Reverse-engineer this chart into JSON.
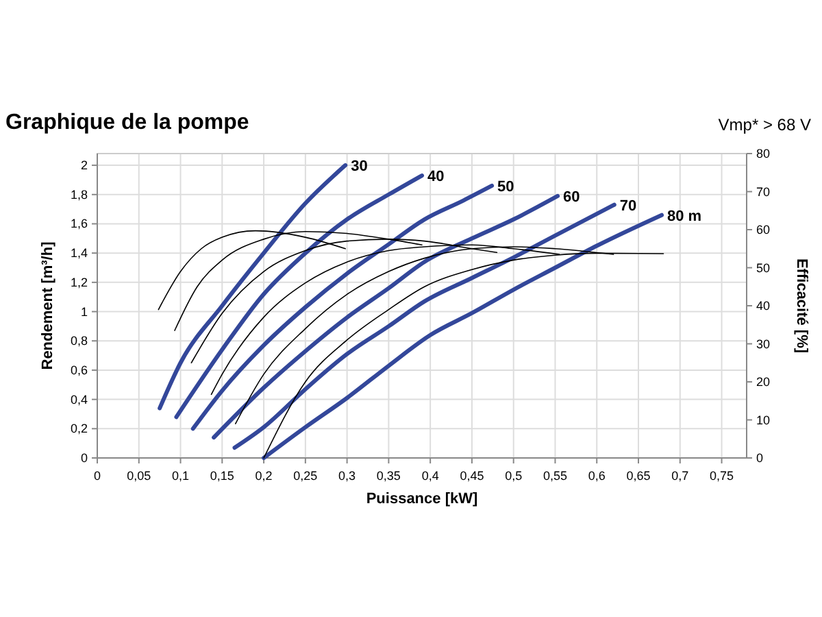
{
  "chart_data": {
    "type": "line",
    "title": "Graphique de la pompe",
    "annotations": [
      "Vmp* > 68 V"
    ],
    "xlabel": "Puissance [kW]",
    "ylabel": "Rendement [m³/h]",
    "y2label": "Efficacité [%]",
    "xlim": [
      0,
      0.78
    ],
    "xticks": [
      0,
      {
        "value": 0.05,
        "label": "0,05"
      },
      {
        "value": 0.1,
        "label": "0,1"
      },
      {
        "value": 0.15,
        "label": "0,15"
      },
      {
        "value": 0.2,
        "label": "0,2"
      },
      {
        "value": 0.25,
        "label": "0,25"
      },
      {
        "value": 0.3,
        "label": "0,3"
      },
      {
        "value": 0.35,
        "label": "0,35"
      },
      {
        "value": 0.4,
        "label": "0,4"
      },
      {
        "value": 0.45,
        "label": "0,45"
      },
      {
        "value": 0.5,
        "label": "0,5"
      },
      {
        "value": 0.55,
        "label": "0,55"
      },
      {
        "value": 0.6,
        "label": "0,6"
      },
      {
        "value": 0.65,
        "label": "0,65"
      },
      {
        "value": 0.7,
        "label": "0,7"
      },
      {
        "value": 0.75,
        "label": "0,75"
      }
    ],
    "ylim": [
      0,
      2.08
    ],
    "yticks": [
      0,
      {
        "value": 0.2,
        "label": "0,2"
      },
      {
        "value": 0.4,
        "label": "0,4"
      },
      {
        "value": 0.6,
        "label": "0,6"
      },
      {
        "value": 0.8,
        "label": "0,8"
      },
      1,
      {
        "value": 1.2,
        "label": "1,2"
      },
      {
        "value": 1.4,
        "label": "1,4"
      },
      {
        "value": 1.6,
        "label": "1,6"
      },
      {
        "value": 1.8,
        "label": "1,8"
      },
      2
    ],
    "y2lim": [
      0,
      80
    ],
    "y2ticks": [
      0,
      10,
      20,
      30,
      40,
      50,
      60,
      70,
      80
    ],
    "grid": true,
    "marker": "none",
    "line_style": "solid",
    "series": [
      {
        "name": "30",
        "color": "#33479a",
        "x": [
          0.075,
          0.1,
          0.15,
          0.2,
          0.25,
          0.298
        ],
        "values": [
          0.34,
          0.65,
          1.04,
          1.4,
          1.74,
          2.0
        ]
      },
      {
        "name": "40",
        "color": "#33479a",
        "x": [
          0.095,
          0.15,
          0.2,
          0.25,
          0.3,
          0.35,
          0.39
        ],
        "values": [
          0.28,
          0.74,
          1.12,
          1.4,
          1.63,
          1.8,
          1.93
        ]
      },
      {
        "name": "50",
        "color": "#33479a",
        "x": [
          0.115,
          0.15,
          0.2,
          0.25,
          0.3,
          0.35,
          0.393,
          0.44,
          0.474
        ],
        "values": [
          0.2,
          0.46,
          0.77,
          1.03,
          1.26,
          1.46,
          1.63,
          1.76,
          1.86
        ]
      },
      {
        "name": "60",
        "color": "#33479a",
        "x": [
          0.14,
          0.2,
          0.25,
          0.3,
          0.35,
          0.393,
          0.45,
          0.5,
          0.553
        ],
        "values": [
          0.14,
          0.48,
          0.73,
          0.96,
          1.16,
          1.34,
          1.5,
          1.63,
          1.79
        ]
      },
      {
        "name": "70",
        "color": "#33479a",
        "x": [
          0.165,
          0.2,
          0.25,
          0.3,
          0.35,
          0.393,
          0.45,
          0.5,
          0.55,
          0.621
        ],
        "values": [
          0.07,
          0.21,
          0.47,
          0.71,
          0.9,
          1.07,
          1.23,
          1.37,
          1.52,
          1.73
        ]
      },
      {
        "name": "80 m",
        "color": "#33479a",
        "x": [
          0.2,
          0.25,
          0.3,
          0.35,
          0.4,
          0.45,
          0.5,
          0.55,
          0.6,
          0.678
        ],
        "values": [
          0,
          0.21,
          0.41,
          0.63,
          0.84,
          0.99,
          1.15,
          1.3,
          1.45,
          1.66
        ]
      },
      {
        "color": "#000000",
        "axis": "y2",
        "x": [
          0.0735,
          0.1,
          0.125,
          0.15,
          0.19,
          0.25,
          0.298
        ],
        "values": [
          39,
          49,
          55,
          58,
          59.7,
          58,
          55
        ]
      },
      {
        "color": "#000000",
        "axis": "y2",
        "x": [
          0.093,
          0.12,
          0.15,
          0.2,
          0.25,
          0.3,
          0.35,
          0.39
        ],
        "values": [
          33.5,
          45,
          52,
          57.5,
          59.5,
          59,
          57.5,
          56
        ]
      },
      {
        "color": "#000000",
        "axis": "y2",
        "x": [
          0.113,
          0.15,
          0.2,
          0.25,
          0.3,
          0.35,
          0.393,
          0.45,
          0.48
        ],
        "values": [
          25,
          38,
          49,
          54.5,
          57,
          57.5,
          57,
          55,
          54
        ]
      },
      {
        "color": "#000000",
        "axis": "y2",
        "x": [
          0.137,
          0.15,
          0.2,
          0.25,
          0.3,
          0.35,
          0.393,
          0.45,
          0.5,
          0.555
        ],
        "values": [
          16.7,
          22,
          37,
          46,
          51.5,
          54.5,
          55.5,
          56,
          55,
          53.5
        ]
      },
      {
        "color": "#000000",
        "axis": "y2",
        "x": [
          0.166,
          0.2,
          0.25,
          0.3,
          0.35,
          0.393,
          0.45,
          0.5,
          0.55,
          0.62
        ],
        "values": [
          9,
          22,
          34,
          43,
          49,
          52.5,
          55,
          55.5,
          55,
          53.5
        ]
      },
      {
        "color": "#000000",
        "axis": "y2",
        "x": [
          0.2,
          0.25,
          0.3,
          0.35,
          0.393,
          0.45,
          0.5,
          0.55,
          0.6,
          0.68
        ],
        "values": [
          0,
          20,
          31,
          39,
          45,
          49.5,
          52,
          53.3,
          53.8,
          53.7
        ]
      }
    ]
  }
}
